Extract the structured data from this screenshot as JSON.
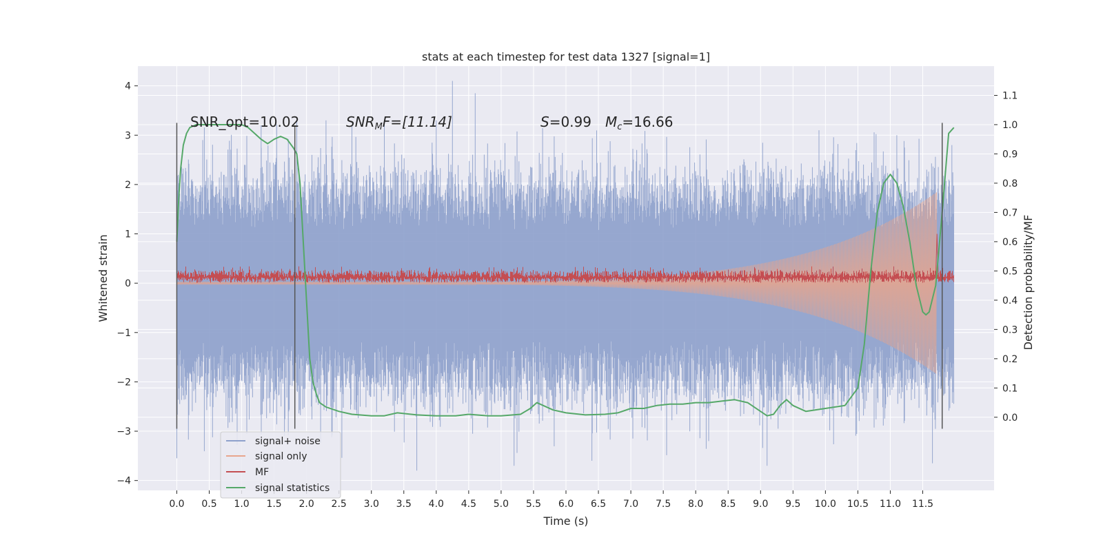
{
  "chart_data": {
    "type": "line",
    "title": "stats at each timestep for test data 1327 [signal=1]",
    "xlabel": "Time (s)",
    "ylabel": "Whitened strain",
    "ylabel_right": "Detection probability/MF",
    "xlim": [
      -0.6,
      12.6
    ],
    "ylim": [
      -4.2,
      4.4
    ],
    "ylim_right": [
      -0.25,
      1.2
    ],
    "x_ticks": [
      0.0,
      0.5,
      1.0,
      1.5,
      2.0,
      2.5,
      3.0,
      3.5,
      4.0,
      4.5,
      5.0,
      5.5,
      6.0,
      6.5,
      7.0,
      7.5,
      8.0,
      8.5,
      9.0,
      9.5,
      10.0,
      10.5,
      11.0,
      11.5
    ],
    "x_tick_labels": [
      "0.0",
      "0.5",
      "1.0",
      "1.5",
      "2.0",
      "2.5",
      "3.0",
      "3.5",
      "4.0",
      "4.5",
      "5.0",
      "5.5",
      "6.0",
      "6.5",
      "7.0",
      "7.5",
      "8.0",
      "8.5",
      "9.0",
      "9.5",
      "10.0",
      "10.5",
      "11.0",
      "11.5"
    ],
    "y_ticks": [
      -4,
      -3,
      -2,
      -1,
      0,
      1,
      2,
      3,
      4
    ],
    "y_tick_labels": [
      "−4",
      "−3",
      "−2",
      "−1",
      "0",
      "1",
      "2",
      "3",
      "4"
    ],
    "y_ticks_right": [
      0.0,
      0.1,
      0.2,
      0.3,
      0.4,
      0.5,
      0.6,
      0.7,
      0.8,
      0.9,
      1.0,
      1.1
    ],
    "y_tick_labels_right": [
      "0.0",
      "0.1",
      "0.2",
      "0.3",
      "0.4",
      "0.5",
      "0.6",
      "0.7",
      "0.8",
      "0.9",
      "1.0",
      "1.1"
    ],
    "grid": true,
    "legend_placement": "lower-left",
    "annotations": {
      "snr_opt": "SNR_opt=10.02",
      "snr_mf_main": "SNR",
      "snr_mf_sub": "M",
      "snr_mf_rest": "F=[11.14]",
      "s_main": "S",
      "s_rest": "=0.99",
      "mc_main": "M",
      "mc_sub": "c",
      "mc_rest": "=16.66"
    },
    "vertical_markers": [
      {
        "x": 0.0,
        "y_top": 3.25,
        "y_bottom": -2.95
      },
      {
        "x": 1.82,
        "y_top": 3.2,
        "y_bottom": -2.95
      },
      {
        "x": 11.8,
        "y_top": 3.25,
        "y_bottom": -2.95
      }
    ],
    "series": [
      {
        "name": "signal+ noise",
        "color": "#8da0cb",
        "band_approx": {
          "x_start": 0.0,
          "x_end": 11.98,
          "typical_amplitude": 1.4,
          "peak_max": 4.1,
          "peak_min": -3.8
        },
        "spikes": [
          [
            0.0,
            -3.55
          ],
          [
            0.4,
            2.9
          ],
          [
            1.3,
            3.2
          ],
          [
            1.85,
            3.3
          ],
          [
            2.3,
            3.3
          ],
          [
            2.7,
            3.2
          ],
          [
            3.2,
            3.25
          ],
          [
            3.7,
            -3.8
          ],
          [
            4.0,
            3.3
          ],
          [
            4.25,
            4.1
          ],
          [
            4.6,
            3.85
          ],
          [
            5.2,
            -3.7
          ],
          [
            6.4,
            -3.6
          ],
          [
            8.2,
            -3.2
          ],
          [
            9.1,
            -3.7
          ],
          [
            9.9,
            3.1
          ],
          [
            11.1,
            3.0
          ],
          [
            11.65,
            -3.65
          ],
          [
            11.95,
            2.8
          ]
        ]
      },
      {
        "name": "signal only",
        "color": "#e8a58c",
        "chirp_approx": {
          "x_start": 0.0,
          "x_end": 11.72,
          "amplitude_start": 0.02,
          "amplitude_end": 1.85
        }
      },
      {
        "name": "MF",
        "color": "#c44e52",
        "band_approx": {
          "x_start": 0.0,
          "x_end": 11.98,
          "baseline": 0.12,
          "amplitude": 0.14,
          "peak_x": 11.72,
          "peak_value": 1.0
        }
      },
      {
        "name": "signal statistics",
        "color": "#55a868",
        "axis": "right",
        "x": [
          0.0,
          0.03,
          0.06,
          0.1,
          0.15,
          0.2,
          0.3,
          0.5,
          0.8,
          1.0,
          1.1,
          1.2,
          1.3,
          1.4,
          1.5,
          1.6,
          1.7,
          1.8,
          1.85,
          1.9,
          2.0,
          2.05,
          2.1,
          2.15,
          2.2,
          2.3,
          2.5,
          2.7,
          3.0,
          3.2,
          3.4,
          3.7,
          4.0,
          4.3,
          4.5,
          4.8,
          5.0,
          5.3,
          5.45,
          5.55,
          5.65,
          5.8,
          6.0,
          6.3,
          6.6,
          6.8,
          7.0,
          7.2,
          7.4,
          7.6,
          7.8,
          8.0,
          8.2,
          8.4,
          8.6,
          8.8,
          9.0,
          9.1,
          9.2,
          9.3,
          9.4,
          9.5,
          9.7,
          10.0,
          10.3,
          10.5,
          10.6,
          10.7,
          10.8,
          10.9,
          11.0,
          11.1,
          11.2,
          11.3,
          11.4,
          11.5,
          11.55,
          11.6,
          11.7,
          11.8,
          11.9,
          11.98
        ],
        "y": [
          0.6,
          0.75,
          0.85,
          0.93,
          0.97,
          0.99,
          1.0,
          1.0,
          1.0,
          1.0,
          0.99,
          0.97,
          0.95,
          0.935,
          0.95,
          0.96,
          0.95,
          0.92,
          0.9,
          0.8,
          0.4,
          0.2,
          0.12,
          0.08,
          0.05,
          0.035,
          0.02,
          0.01,
          0.005,
          0.005,
          0.015,
          0.008,
          0.005,
          0.005,
          0.01,
          0.005,
          0.005,
          0.01,
          0.03,
          0.05,
          0.04,
          0.025,
          0.015,
          0.008,
          0.01,
          0.015,
          0.03,
          0.03,
          0.04,
          0.045,
          0.045,
          0.05,
          0.05,
          0.055,
          0.06,
          0.05,
          0.02,
          0.005,
          0.01,
          0.04,
          0.06,
          0.04,
          0.02,
          0.03,
          0.04,
          0.1,
          0.25,
          0.5,
          0.7,
          0.8,
          0.83,
          0.8,
          0.72,
          0.6,
          0.45,
          0.36,
          0.35,
          0.36,
          0.45,
          0.7,
          0.97,
          0.99
        ]
      }
    ]
  }
}
